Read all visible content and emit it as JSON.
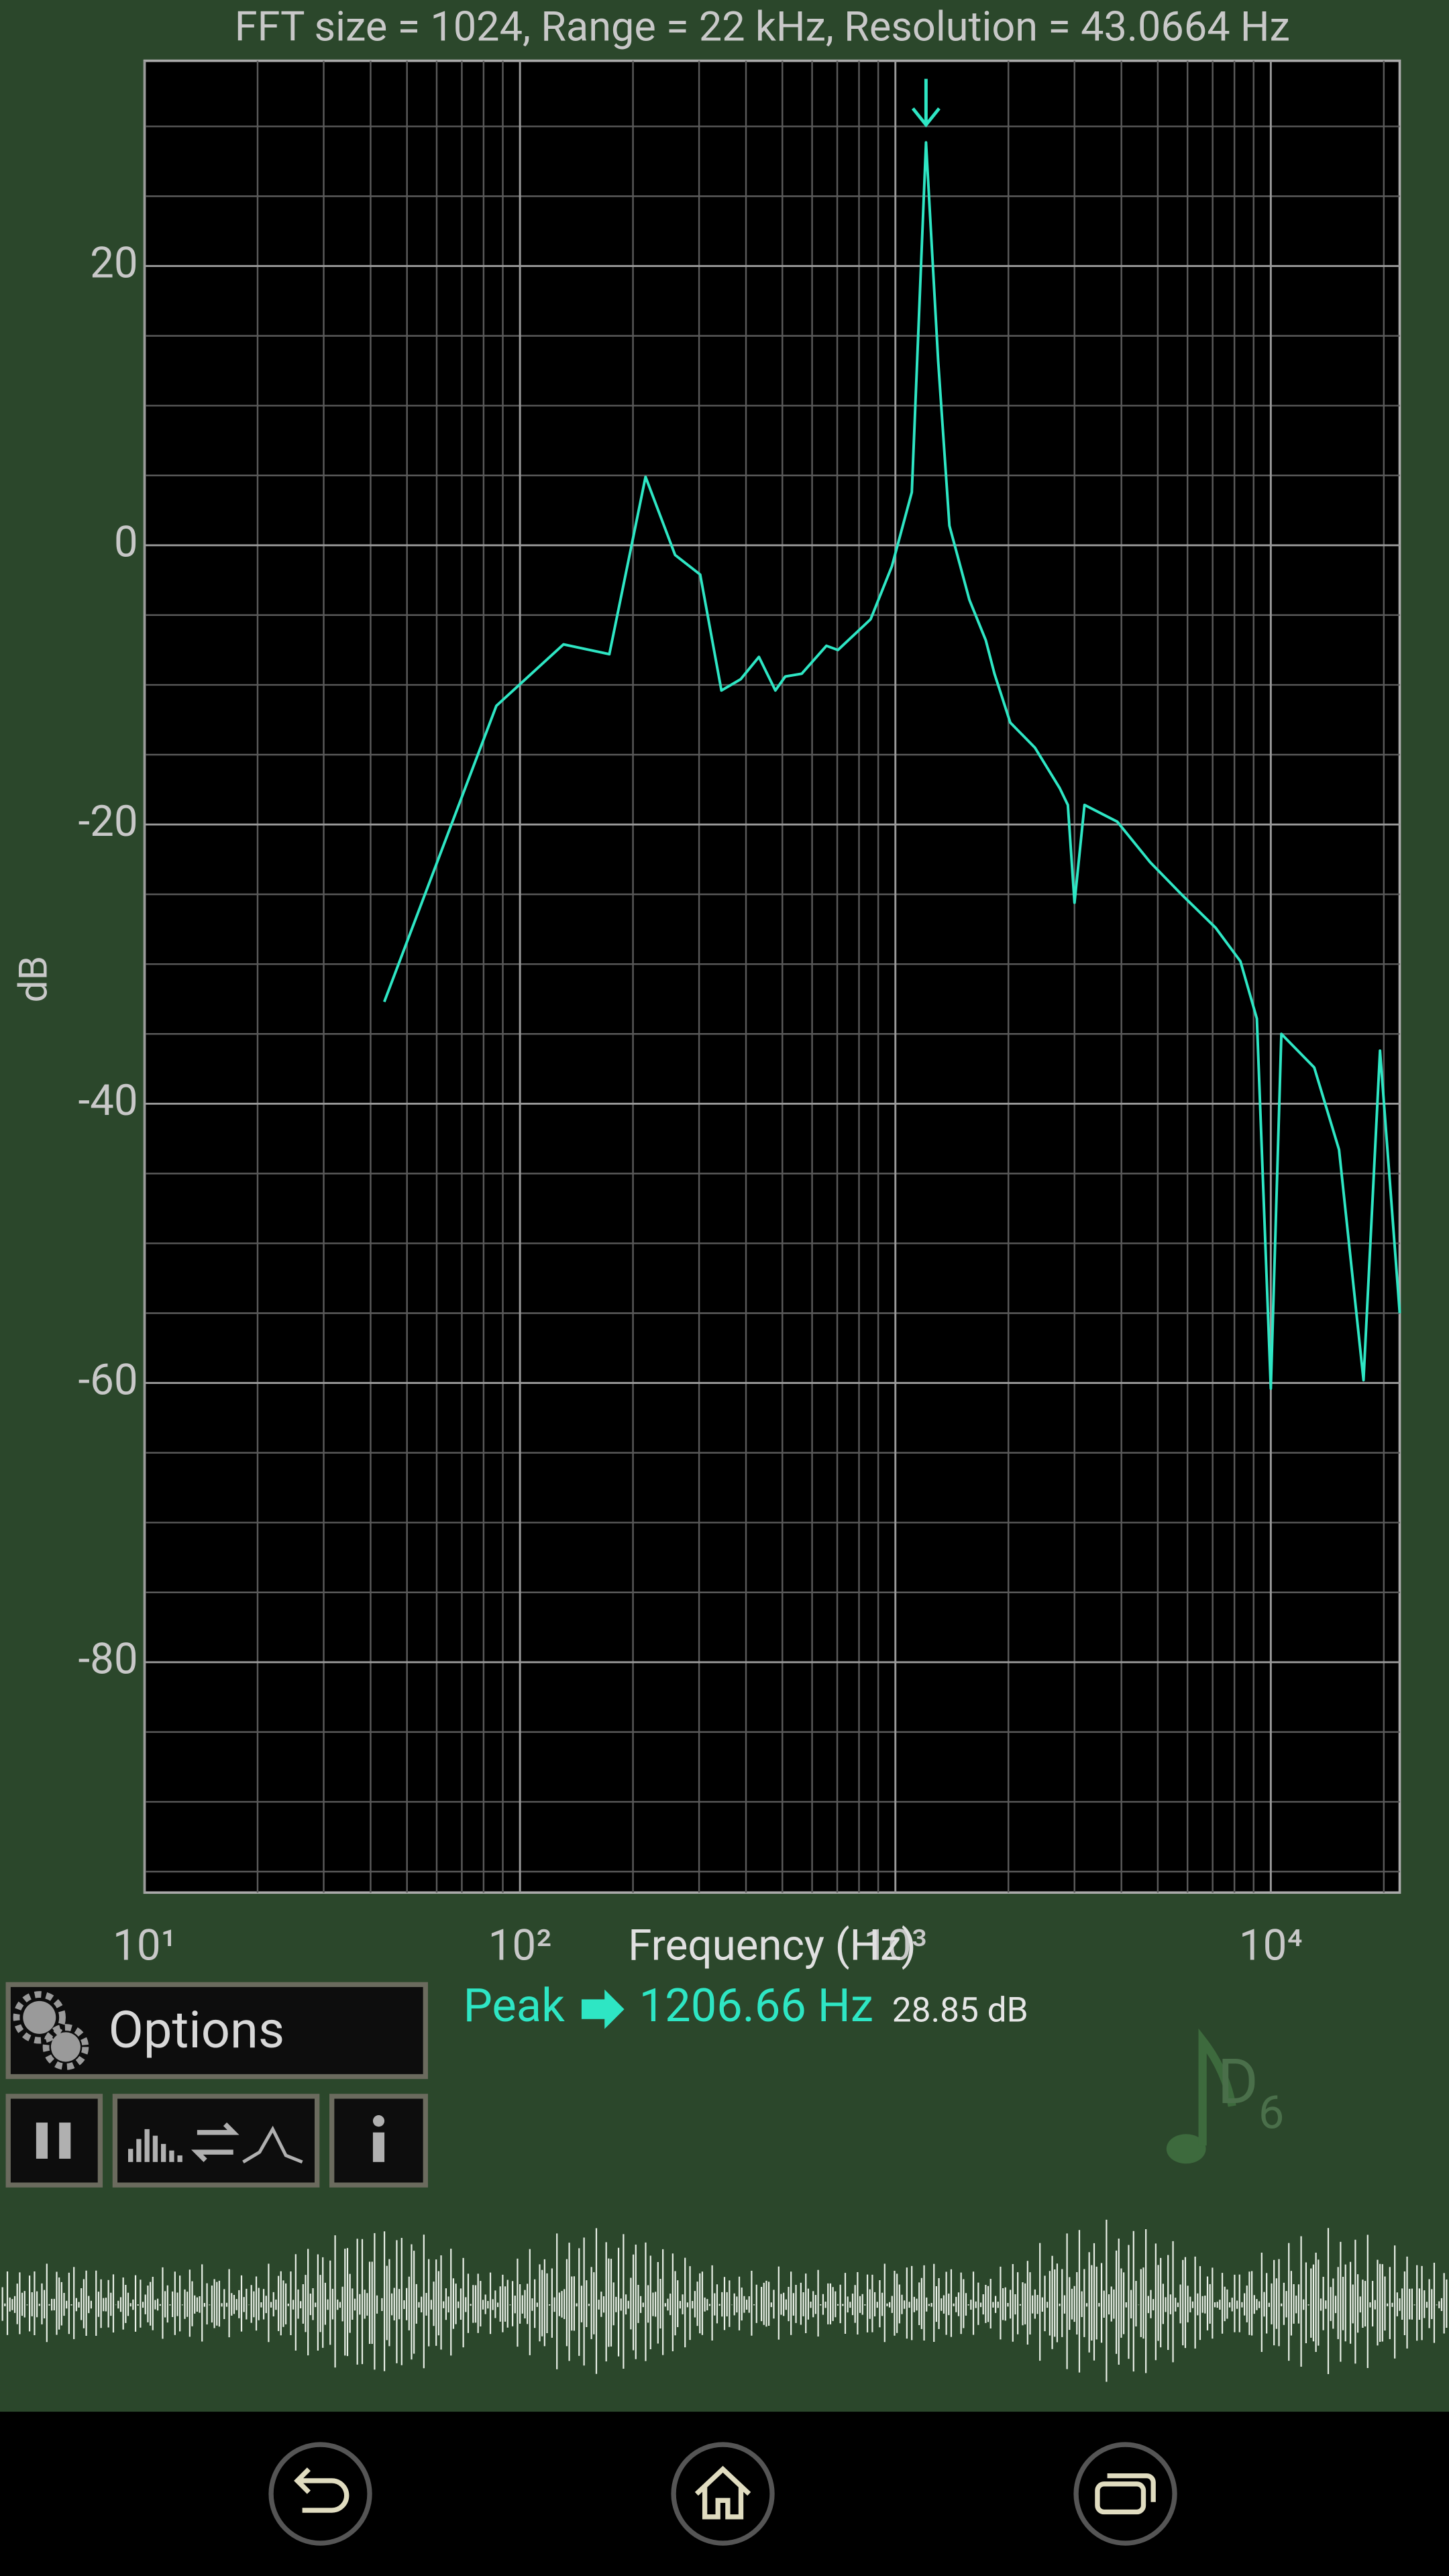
{
  "chart_data": {
    "type": "line",
    "title": "FFT size = 1024, Range = 22 kHz, Resolution = 43.0664 Hz",
    "x_label": "Frequency (Hz)",
    "y_label": "dB",
    "x": [
      43.5,
      86.5,
      130.6,
      173,
      216,
      259,
      302,
      344,
      387,
      433,
      479,
      509,
      563,
      655,
      703,
      859,
      979,
      1106,
      1206.66,
      1300,
      1393,
      1574,
      1741,
      1836,
      2023,
      2354,
      2740,
      2880,
      3000,
      3190,
      3900,
      4770,
      5830,
      7130,
      8300,
      9180,
      10000,
      10670,
      13050,
      15200,
      17660,
      19540,
      22050
    ],
    "values": [
      -32.7,
      -11.5,
      -7.1,
      -7.8,
      4.9,
      -0.7,
      -2.1,
      -10.4,
      -9.6,
      -8.0,
      -10.4,
      -9.4,
      -9.2,
      -7.2,
      -7.5,
      -5.3,
      -1.5,
      3.8,
      28.85,
      13.2,
      1.4,
      -3.9,
      -6.8,
      -9.2,
      -12.7,
      -14.5,
      -17.4,
      -18.6,
      -25.6,
      -18.6,
      -19.8,
      -22.7,
      -25.1,
      -27.4,
      -29.8,
      -33.9,
      -60.4,
      -35,
      -37.4,
      -43.3,
      -59.8,
      -36.2,
      -55
    ],
    "color": "#2ee6c4",
    "x_log": true,
    "xlim": [
      10,
      22050
    ],
    "xticks": [
      {
        "value": 10,
        "label": "10¹"
      },
      {
        "value": 100,
        "label": "10²"
      },
      {
        "value": 1000,
        "label": "10³"
      },
      {
        "value": 10000,
        "label": "10⁴"
      }
    ],
    "ylim": [
      -96.5,
      34.7
    ],
    "yticks": [
      20,
      0,
      -20,
      -40,
      -60,
      -80
    ],
    "grid": true
  },
  "peak": {
    "label": "Peak",
    "frequency": "1206.66 Hz",
    "level": "28.85 dB"
  },
  "controls": {
    "options": "Options"
  },
  "note": {
    "name": "D",
    "octave": "6"
  }
}
